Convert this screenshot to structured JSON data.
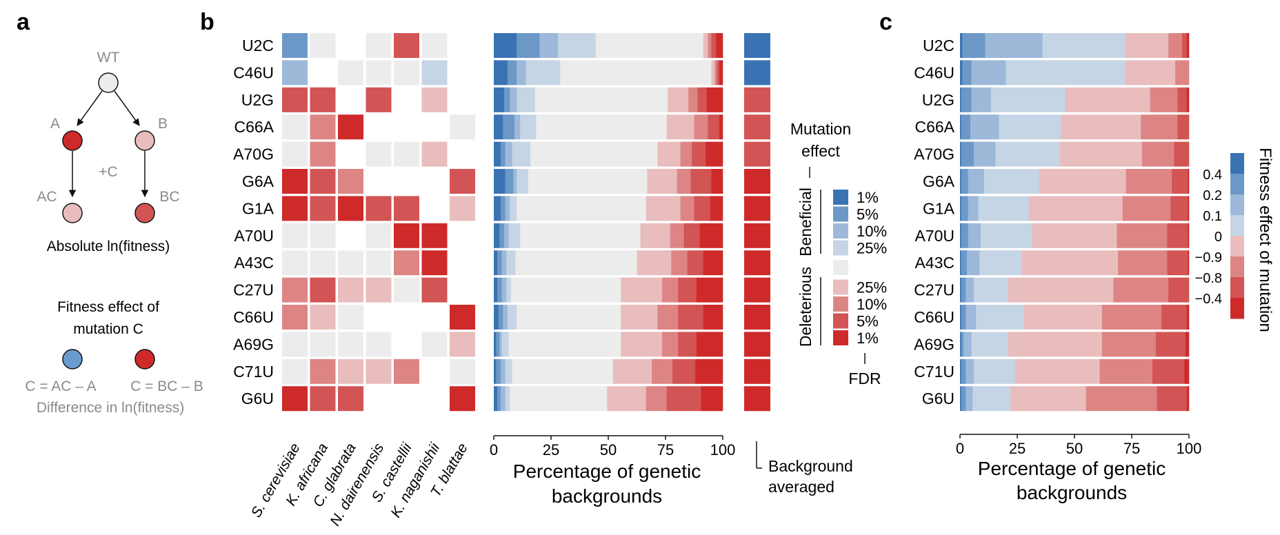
{
  "panels": {
    "a": "a",
    "b": "b",
    "c": "c"
  },
  "colors": {
    "heat": [
      "#3a73b3",
      "#6c98c7",
      "#9db8d9",
      "#c5d5e5",
      "#ececec",
      "#e9bdbd",
      "#dd8585",
      "#d35454",
      "#cf2a2a"
    ],
    "nodes": {
      "blue": "#6a9bce",
      "red": "#cf2a2a",
      "pink": "#e9bdbd",
      "grey": "#ececec",
      "pinkred": "#d35454"
    },
    "grey_text": "#8a8a8a"
  },
  "panel_a": {
    "nodes": {
      "wt": "WT",
      "a": "A",
      "b": "B",
      "ac": "AC",
      "bc": "BC"
    },
    "plus_c": "+C",
    "tree_caption": "Absolute ln(fitness)",
    "legend_title_1": "Fitness effect of",
    "legend_title_2": "mutation C",
    "formula_left": "C = AC – A",
    "formula_right": "C = BC – B",
    "difference": "Difference in ln(fitness)"
  },
  "chart_data": [
    {
      "type": "heatmap",
      "panel": "b",
      "rows": [
        "U2C",
        "C46U",
        "U2G",
        "C66A",
        "A70G",
        "G6A",
        "G1A",
        "A70U",
        "A43C",
        "C27U",
        "C66U",
        "A69G",
        "C71U",
        "G6U"
      ],
      "columns": [
        "S. cerevisiae",
        "K. africana",
        "C. glabrata",
        "N. dairenensis",
        "S. castellii",
        "K. naganishii",
        "T. blattae"
      ],
      "levels_note": "0=beneficial 1%,1=5%,2=10%,3=25%,4=neutral,5=deleterious 25%,6=10%,7=5%,8=1%, null=missing",
      "cells": [
        [
          1,
          4,
          null,
          4,
          7,
          4,
          null
        ],
        [
          2,
          null,
          4,
          4,
          4,
          3,
          null
        ],
        [
          7,
          7,
          null,
          7,
          null,
          5,
          null
        ],
        [
          4,
          6,
          8,
          null,
          null,
          null,
          4
        ],
        [
          4,
          6,
          null,
          4,
          4,
          5,
          null
        ],
        [
          8,
          7,
          6,
          null,
          null,
          null,
          7
        ],
        [
          8,
          7,
          8,
          7,
          7,
          null,
          5
        ],
        [
          4,
          4,
          null,
          4,
          8,
          8,
          null
        ],
        [
          4,
          4,
          4,
          4,
          6,
          8,
          null
        ],
        [
          6,
          7,
          5,
          5,
          4,
          7,
          null
        ],
        [
          6,
          5,
          4,
          null,
          null,
          null,
          8
        ],
        [
          4,
          4,
          4,
          4,
          null,
          4,
          5
        ],
        [
          4,
          6,
          5,
          5,
          6,
          null,
          4
        ],
        [
          8,
          7,
          7,
          null,
          null,
          null,
          8
        ]
      ]
    },
    {
      "type": "bar",
      "panel": "b",
      "orientation": "horizontal-stacked",
      "categories": [
        "U2C",
        "C46U",
        "U2G",
        "C66A",
        "A70G",
        "G6A",
        "G1A",
        "A70U",
        "A43C",
        "C27U",
        "C66U",
        "A69G",
        "C71U",
        "G6U"
      ],
      "segment_order": [
        "1%",
        "5%",
        "10%",
        "25%",
        "neutral",
        "25%",
        "10%",
        "5%",
        "1%"
      ],
      "stacks": [
        [
          10,
          10,
          8,
          16.5,
          47,
          2,
          1.5,
          2,
          3
        ],
        [
          6,
          4,
          4,
          15,
          66,
          1.5,
          1,
          1,
          1.5
        ],
        [
          4.5,
          2.5,
          3,
          8,
          58,
          9,
          4,
          4,
          7
        ],
        [
          4,
          5,
          2.5,
          7,
          57,
          12,
          6,
          5,
          1.5
        ],
        [
          3,
          2,
          3,
          8,
          55.5,
          10,
          5,
          6,
          7.5
        ],
        [
          5,
          3.5,
          1.5,
          5,
          52,
          13,
          6,
          9,
          5
        ],
        [
          3,
          2,
          2,
          3,
          56.5,
          15,
          6,
          7,
          5.5
        ],
        [
          2.5,
          2,
          2,
          5,
          52.5,
          13,
          6,
          7,
          10
        ],
        [
          1.5,
          2,
          2,
          4,
          53,
          15,
          7,
          7,
          8.5
        ],
        [
          1.5,
          2,
          2,
          2,
          48,
          18,
          7,
          8,
          11.5
        ],
        [
          2,
          2,
          2,
          4,
          45.5,
          16,
          9,
          11,
          8.5
        ],
        [
          1,
          1.5,
          1,
          3,
          49,
          18,
          7,
          8,
          11.5
        ],
        [
          1,
          2,
          2,
          3,
          44,
          17,
          9,
          10,
          12
        ],
        [
          1.5,
          1.5,
          2,
          2,
          42.5,
          17,
          9,
          15,
          9.5
        ]
      ],
      "xticks": [
        0,
        25,
        50,
        75,
        100
      ],
      "xlim": [
        0,
        100
      ],
      "xlabel_1": "Percentage of genetic",
      "xlabel_2": "backgrounds",
      "averaged_levels": [
        0,
        0,
        7,
        7,
        7,
        8,
        8,
        8,
        8,
        8,
        8,
        8,
        8,
        8
      ],
      "averaged_label_1": "Background",
      "averaged_label_2": "averaged"
    },
    {
      "type": "bar",
      "panel": "c",
      "orientation": "horizontal-stacked",
      "categories": [
        "U2C",
        "C46U",
        "U2G",
        "C66A",
        "A70G",
        "G6A",
        "G1A",
        "A70U",
        "A43C",
        "C27U",
        "C66U",
        "A69G",
        "C71U",
        "G6U"
      ],
      "segment_order": [
        "0.4",
        "0.2",
        "0.1",
        "0",
        "-0.9",
        "-0.8",
        "-0.4",
        "lowest"
      ],
      "stacks": [
        [
          1,
          10,
          25,
          36,
          19,
          6,
          2,
          1
        ],
        [
          1,
          4,
          15,
          52,
          22,
          6,
          0,
          0
        ],
        [
          0.5,
          4.5,
          8.5,
          32.5,
          37,
          12,
          4,
          1
        ],
        [
          0.5,
          4,
          12.5,
          27,
          35,
          16,
          5,
          0
        ],
        [
          0.5,
          5.5,
          9.5,
          28,
          36,
          14,
          6.5,
          0
        ],
        [
          0.5,
          3,
          7,
          24,
          38,
          20,
          7,
          0.5
        ],
        [
          0.5,
          3,
          4.5,
          22,
          41,
          21,
          7.5,
          0.5
        ],
        [
          0.5,
          3,
          5.5,
          22.5,
          37,
          22,
          9,
          0.5
        ],
        [
          0.5,
          2.5,
          5.5,
          18.5,
          42,
          21.5,
          9,
          0.5
        ],
        [
          0.5,
          2,
          3.5,
          15,
          46,
          24,
          9,
          0
        ],
        [
          0.5,
          2,
          4.5,
          21,
          34,
          26,
          11,
          1
        ],
        [
          0.5,
          1,
          3.5,
          16,
          41,
          23.5,
          13,
          1.5
        ],
        [
          0.5,
          2,
          3.5,
          18,
          37,
          23,
          14,
          2
        ],
        [
          0.5,
          2,
          3,
          16.5,
          33,
          31,
          13,
          1
        ]
      ],
      "xticks": [
        0,
        25,
        50,
        75,
        100
      ],
      "xlim": [
        0,
        100
      ],
      "xlabel_1": "Percentage of genetic",
      "xlabel_2": "backgrounds"
    }
  ],
  "legend_b": {
    "title_1": "Mutation",
    "title_2": "effect",
    "beneficial": "Beneficial",
    "deleterious": "Deleterious",
    "ben_items": [
      "1%",
      "5%",
      "10%",
      "25%"
    ],
    "del_items": [
      "25%",
      "10%",
      "5%",
      "1%"
    ],
    "fdr": "FDR"
  },
  "legend_c": {
    "title": "Fitness effect of mutation",
    "ticks": [
      "0.4",
      "0.2",
      "0.1",
      "0",
      "−0.9",
      "−0.8",
      "−0.4"
    ]
  }
}
